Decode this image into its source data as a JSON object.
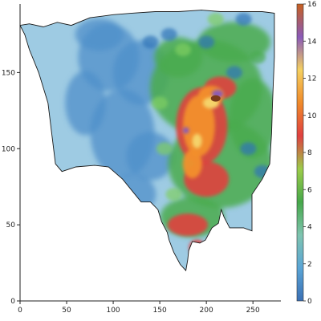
{
  "chart_data": {
    "type": "heatmap",
    "title": "",
    "xlabel": "",
    "ylabel": "",
    "xlim": [
      0,
      280
    ],
    "ylim": [
      0,
      195
    ],
    "x_ticks": [
      0,
      50,
      100,
      150,
      200,
      250
    ],
    "y_ticks": [
      0,
      50,
      100,
      150
    ],
    "colorbar": {
      "min": 0,
      "max": 16,
      "ticks": [
        0,
        2,
        4,
        6,
        8,
        10,
        12,
        14,
        16
      ],
      "colors": [
        "#3a6fb4",
        "#5aa5d6",
        "#7fc4b0",
        "#46a84a",
        "#9ccc4a",
        "#e04040",
        "#f08a2a",
        "#f5d060",
        "#8a5ab8",
        "#c86020"
      ]
    },
    "region_outline": [
      [
        0,
        181
      ],
      [
        10,
        182
      ],
      [
        25,
        180
      ],
      [
        40,
        183
      ],
      [
        55,
        181
      ],
      [
        75,
        186
      ],
      [
        100,
        188
      ],
      [
        120,
        189
      ],
      [
        145,
        190
      ],
      [
        170,
        190
      ],
      [
        195,
        191
      ],
      [
        215,
        190
      ],
      [
        235,
        190
      ],
      [
        260,
        190
      ],
      [
        273,
        189
      ],
      [
        273,
        175
      ],
      [
        273,
        160
      ],
      [
        272,
        145
      ],
      [
        271,
        130
      ],
      [
        270,
        110
      ],
      [
        268,
        90
      ],
      [
        260,
        80
      ],
      [
        249,
        70
      ],
      [
        249,
        62
      ],
      [
        249,
        46
      ],
      [
        240,
        48
      ],
      [
        225,
        48
      ],
      [
        219,
        55
      ],
      [
        216,
        60
      ],
      [
        213,
        51
      ],
      [
        206,
        48
      ],
      [
        199,
        40
      ],
      [
        193,
        38
      ],
      [
        185,
        39
      ],
      [
        181,
        33
      ],
      [
        180,
        27
      ],
      [
        178,
        20
      ],
      [
        172,
        24
      ],
      [
        165,
        32
      ],
      [
        160,
        40
      ],
      [
        158,
        45
      ],
      [
        152,
        52
      ],
      [
        148,
        60
      ],
      [
        140,
        65
      ],
      [
        130,
        65
      ],
      [
        110,
        80
      ],
      [
        95,
        88
      ],
      [
        80,
        89
      ],
      [
        60,
        88
      ],
      [
        45,
        85
      ],
      [
        38,
        90
      ],
      [
        30,
        130
      ],
      [
        20,
        150
      ],
      [
        10,
        165
      ],
      [
        5,
        175
      ]
    ],
    "hotspot_center": [
      190,
      115
    ],
    "peak_value": 16
  }
}
